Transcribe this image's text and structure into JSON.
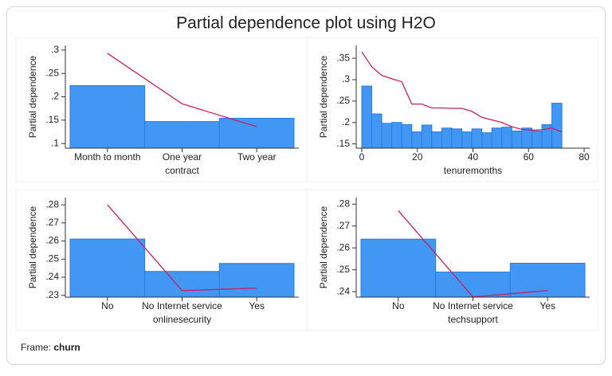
{
  "title": "Partial dependence plot using H2O",
  "footer": {
    "label": "Frame:",
    "value": "churn"
  },
  "chart_data": [
    {
      "type": "bar",
      "categories": [
        "Month to month",
        "One year",
        "Two year"
      ],
      "values": [
        0.224,
        0.147,
        0.154
      ],
      "color": "#4296f4",
      "xlabel": "contract",
      "ylabel": "Partial dependence",
      "line": {
        "values": [
          0.293,
          0.185,
          0.136
        ],
        "color": "#c8215e"
      },
      "ylim": [
        0.09,
        0.31
      ],
      "yticks": [
        {
          "value": 0.1,
          "label": ".1"
        },
        {
          "value": 0.15,
          "label": ".15"
        },
        {
          "value": 0.2,
          "label": ".2"
        },
        {
          "value": 0.25,
          "label": ".25"
        },
        {
          "value": 0.3,
          "label": ".3"
        }
      ]
    },
    {
      "type": "histogram",
      "bins": [
        0,
        3.6,
        7.2,
        10.8,
        14.4,
        18,
        21.6,
        25.2,
        28.8,
        32.4,
        36,
        39.6,
        43.2,
        46.8,
        50.4,
        54,
        57.6,
        61.2,
        64.8,
        68.4,
        72
      ],
      "values": [
        0.285,
        0.22,
        0.198,
        0.2,
        0.195,
        0.178,
        0.194,
        0.178,
        0.187,
        0.185,
        0.178,
        0.185,
        0.176,
        0.187,
        0.189,
        0.18,
        0.187,
        0.18,
        0.195,
        0.245
      ],
      "color": "#4296f4",
      "xlabel": "tenuremonths",
      "ylabel": "Partial dependence",
      "line": {
        "x": [
          0,
          3.6,
          7.2,
          10.8,
          14.4,
          18,
          21.6,
          25.2,
          28.8,
          32.4,
          36,
          39.6,
          43.2,
          46.8,
          50.4,
          54,
          57.6,
          61.2,
          64.8,
          68.4,
          72
        ],
        "values": [
          0.365,
          0.33,
          0.31,
          0.302,
          0.295,
          0.243,
          0.243,
          0.234,
          0.234,
          0.233,
          0.233,
          0.226,
          0.212,
          0.206,
          0.2,
          0.19,
          0.184,
          0.182,
          0.183,
          0.187,
          0.178
        ],
        "color": "#c8215e"
      },
      "xlim": [
        -2,
        82
      ],
      "xticks": [
        0,
        20,
        40,
        60,
        80
      ],
      "ylim": [
        0.14,
        0.38
      ],
      "yticks": [
        {
          "value": 0.15,
          "label": ".15"
        },
        {
          "value": 0.2,
          "label": ".2"
        },
        {
          "value": 0.25,
          "label": ".25"
        },
        {
          "value": 0.3,
          "label": ".3"
        },
        {
          "value": 0.35,
          "label": ".35"
        }
      ]
    },
    {
      "type": "bar",
      "categories": [
        "No",
        "No Internet service",
        "Yes"
      ],
      "values": [
        0.2611,
        0.2432,
        0.2476
      ],
      "color": "#4296f4",
      "xlabel": "onlinesecurity",
      "ylabel": "Partial dependence",
      "line": {
        "values": [
          0.28,
          0.2326,
          0.234
        ],
        "color": "#c8215e"
      },
      "ylim": [
        0.229,
        0.284
      ],
      "yticks": [
        {
          "value": 0.23,
          "label": ".23"
        },
        {
          "value": 0.24,
          "label": ".24"
        },
        {
          "value": 0.25,
          "label": ".25"
        },
        {
          "value": 0.26,
          "label": ".26"
        },
        {
          "value": 0.27,
          "label": ".27"
        },
        {
          "value": 0.28,
          "label": ".28"
        }
      ]
    },
    {
      "type": "bar",
      "categories": [
        "No",
        "No Internet service",
        "Yes"
      ],
      "values": [
        0.264,
        0.249,
        0.253
      ],
      "color": "#4296f4",
      "xlabel": "techsupport",
      "ylabel": "Partial dependence",
      "line": {
        "values": [
          0.277,
          0.2376,
          0.2405
        ],
        "color": "#c8215e"
      },
      "ylim": [
        0.2375,
        0.283
      ],
      "yticks": [
        {
          "value": 0.24,
          "label": ".24"
        },
        {
          "value": 0.25,
          "label": ".25"
        },
        {
          "value": 0.26,
          "label": ".26"
        },
        {
          "value": 0.27,
          "label": ".27"
        },
        {
          "value": 0.28,
          "label": ".28"
        }
      ]
    }
  ]
}
